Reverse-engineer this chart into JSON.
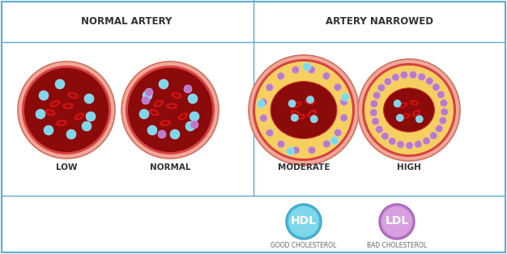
{
  "bg_color": "#ffffff",
  "border_color": "#5bacd4",
  "grid_line_color": "#5bacd4",
  "header_left": "NORMAL ARTERY",
  "header_right": "ARTERY NARROWED",
  "labels": [
    "LOW",
    "NORMAL",
    "MODERATE",
    "HIGH"
  ],
  "hdl_label": "HDL",
  "ldl_label": "LDL",
  "hdl_sub": "GOOD CHOLESTEROL",
  "ldl_sub": "BAD CHOLESTEROL",
  "hdl_color_top": "#7dd8ea",
  "hdl_color_bot": "#4bb8d8",
  "ldl_color_top": "#d8a0e0",
  "ldl_color_bot": "#b878c8",
  "artery_outer_color": "#e8a090",
  "artery_wall_color": "#e06060",
  "artery_blood_dark": "#7a0a0a",
  "artery_blood_mid": "#aa1010",
  "plaque_outer": "#e8a090",
  "plaque_yellow": "#f5d878",
  "plaque_inner_ring": "#e06060",
  "hdl_dot_color": "#7dd8ea",
  "ldl_dot_color": "#b87acc",
  "rbc_color": "#cc1515",
  "rbc_edge": "#aa0a0a",
  "text_color": "#333333",
  "label_fontsize": 7.5,
  "header_fontsize": 8.5
}
